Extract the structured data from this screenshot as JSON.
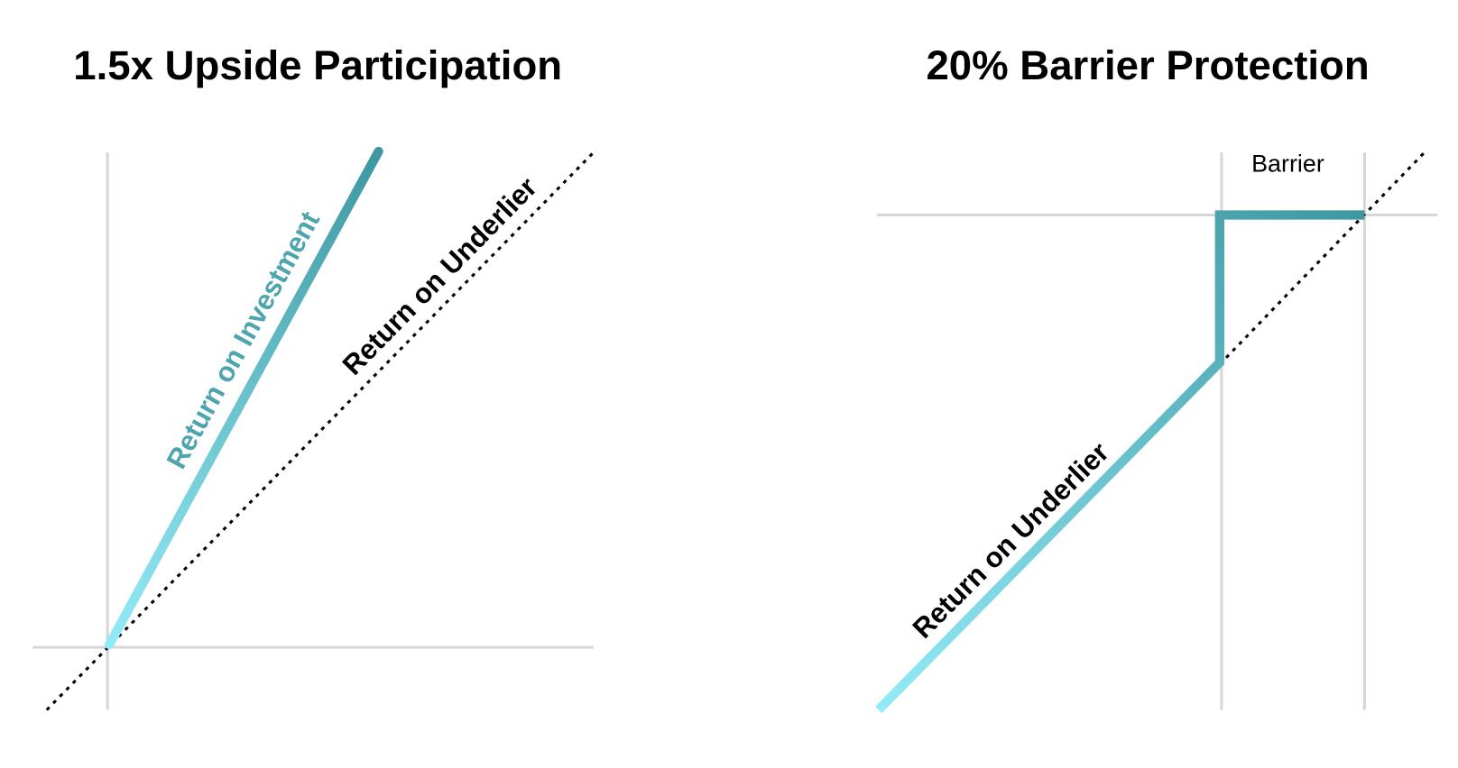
{
  "panels": [
    {
      "title": "1.5x Upside Participation",
      "labels": [
        "Return on Investment",
        "Return on Underlier"
      ]
    },
    {
      "title": "20% Barrier Protection",
      "labels": [
        "Barrier",
        "Return on Underlier"
      ]
    }
  ]
}
